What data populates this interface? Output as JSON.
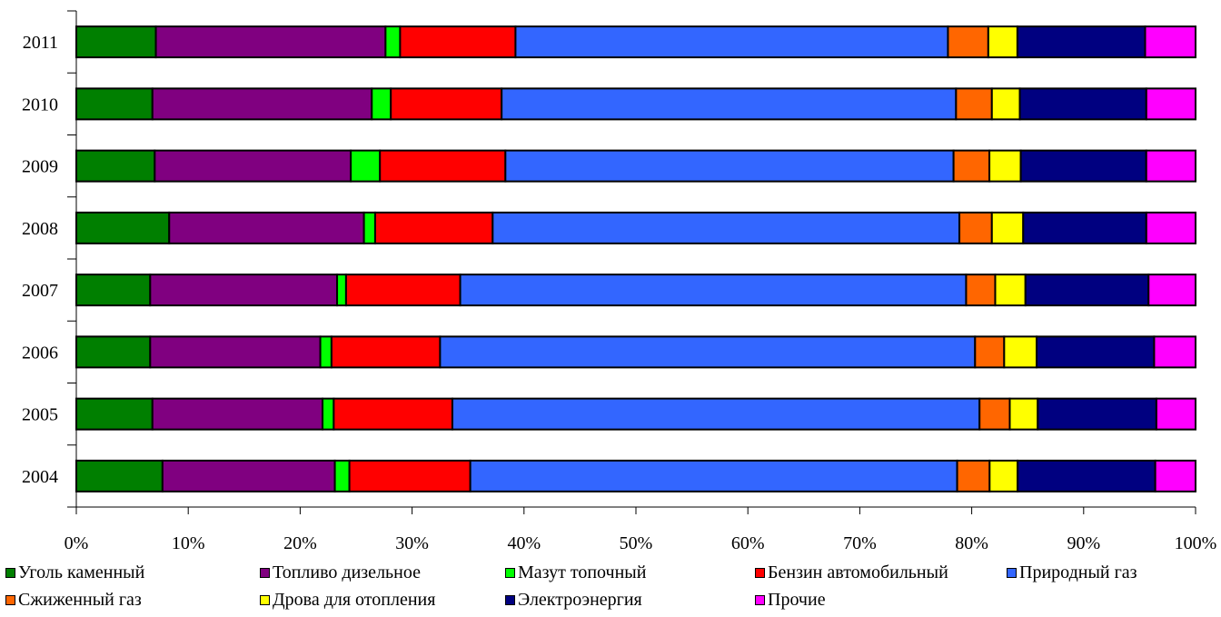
{
  "chart_data": {
    "type": "bar",
    "orientation": "horizontal",
    "stacked": "percent",
    "categories": [
      "2011",
      "2010",
      "2009",
      "2008",
      "2007",
      "2006",
      "2005",
      "2004"
    ],
    "xlim": [
      0,
      100
    ],
    "x_ticks": [
      "0%",
      "10%",
      "20%",
      "30%",
      "40%",
      "50%",
      "60%",
      "70%",
      "80%",
      "90%",
      "100%"
    ],
    "title": "",
    "xlabel": "",
    "ylabel": "",
    "grid": false,
    "legend_position": "bottom",
    "series": [
      {
        "name": "Уголь каменный",
        "color": "#007F00",
        "values": [
          7.1,
          6.8,
          7.0,
          8.3,
          6.6,
          6.6,
          6.8,
          7.7
        ]
      },
      {
        "name": "Топливо дизельное",
        "color": "#800080",
        "values": [
          20.5,
          19.6,
          17.5,
          17.4,
          16.7,
          15.2,
          15.2,
          15.4
        ]
      },
      {
        "name": "Мазут топочный",
        "color": "#00FF00",
        "values": [
          1.3,
          1.7,
          2.6,
          1.0,
          0.8,
          1.0,
          1.0,
          1.3
        ]
      },
      {
        "name": "Бензин автомобильный",
        "color": "#FF0000",
        "values": [
          10.3,
          9.9,
          11.2,
          10.5,
          10.2,
          9.7,
          10.6,
          10.8
        ]
      },
      {
        "name": "Природный газ",
        "color": "#3366FF",
        "values": [
          38.6,
          40.6,
          40.0,
          41.7,
          45.2,
          47.8,
          47.1,
          43.5
        ]
      },
      {
        "name": "Сжиженный газ",
        "color": "#FF6600",
        "values": [
          3.6,
          3.2,
          3.2,
          2.9,
          2.6,
          2.6,
          2.7,
          2.9
        ]
      },
      {
        "name": "Дрова для отопления",
        "color": "#FFFF00",
        "values": [
          2.6,
          2.5,
          2.8,
          2.8,
          2.7,
          2.9,
          2.5,
          2.5
        ]
      },
      {
        "name": "Электроэнергия",
        "color": "#000080",
        "values": [
          11.4,
          11.3,
          11.2,
          11.0,
          11.0,
          10.5,
          10.6,
          12.3
        ]
      },
      {
        "name": "Прочие",
        "color": "#FF00FF",
        "values": [
          4.5,
          4.4,
          4.4,
          4.4,
          4.2,
          3.7,
          3.5,
          3.6
        ]
      }
    ]
  }
}
